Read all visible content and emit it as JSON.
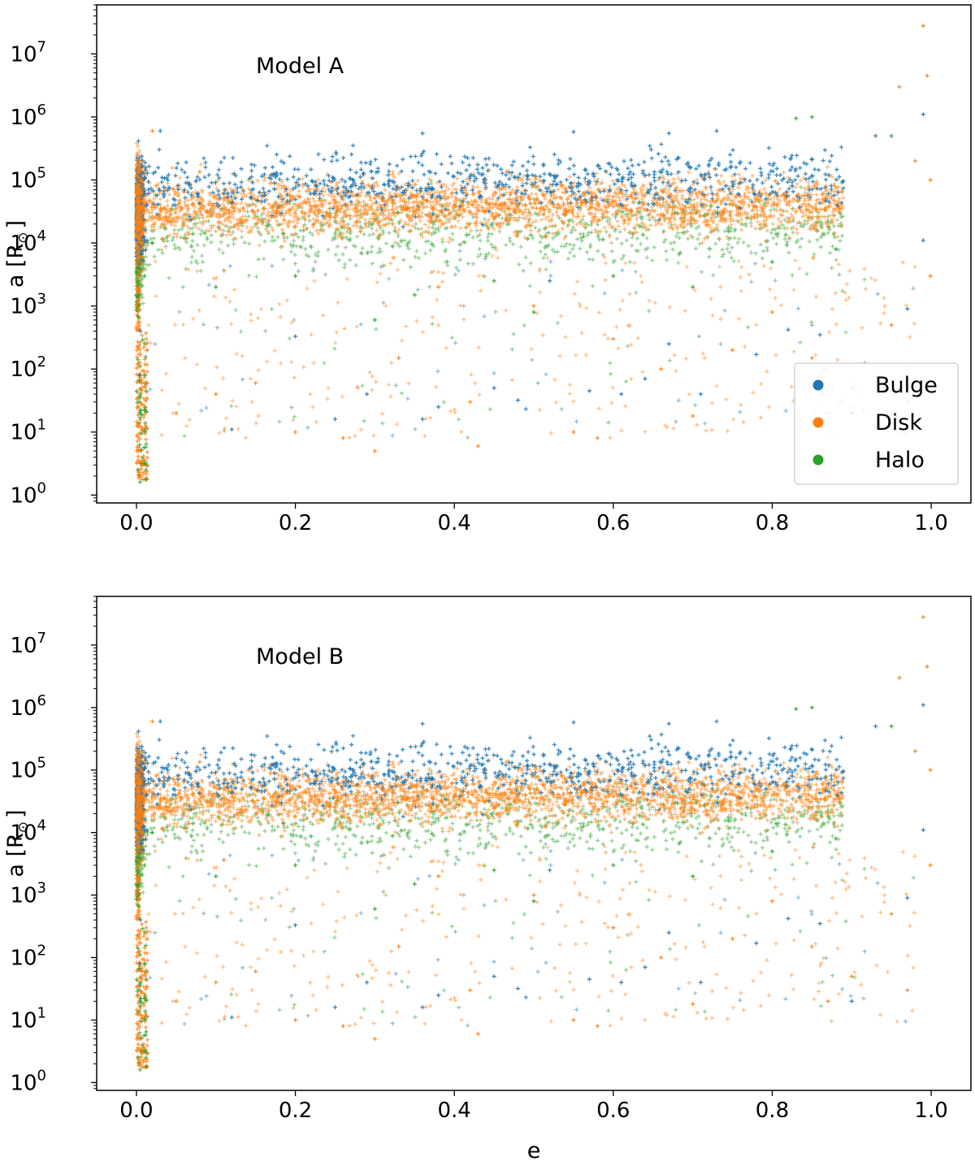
{
  "chart_data": [
    {
      "type": "scatter",
      "title": "",
      "annotation": "Model A",
      "xlabel": "",
      "ylabel": "a [R",
      "ylabel_symbol": "⊙",
      "ylabel_close": "]",
      "xscale": "linear",
      "yscale": "log",
      "xlim": [
        -0.05,
        1.05
      ],
      "ylim": [
        0.75,
        60000000
      ],
      "xticks": [
        0.0,
        0.2,
        0.4,
        0.6,
        0.8,
        1.0
      ],
      "xtick_labels": [
        "0.0",
        "0.2",
        "0.4",
        "0.6",
        "0.8",
        "1.0"
      ],
      "yticks": [
        1,
        10,
        100,
        1000,
        10000,
        100000,
        1000000,
        10000000
      ],
      "ytick_labels": [
        {
          "base": "10",
          "exp": "0"
        },
        {
          "base": "10",
          "exp": "1"
        },
        {
          "base": "10",
          "exp": "2"
        },
        {
          "base": "10",
          "exp": "3"
        },
        {
          "base": "10",
          "exp": "4"
        },
        {
          "base": "10",
          "exp": "5"
        },
        {
          "base": "10",
          "exp": "6"
        },
        {
          "base": "10",
          "exp": "7"
        }
      ],
      "grid": false,
      "legend": {
        "placement": "lower-right",
        "entries": [
          "Bulge",
          "Disk",
          "Halo"
        ]
      },
      "marker": "plus",
      "series": [
        {
          "name": "Bulge",
          "color": "#1f77b4",
          "points": [
            [
              0.03,
              600000
            ],
            [
              0.36,
              550000
            ],
            [
              0.55,
              580000
            ],
            [
              0.67,
              550000
            ],
            [
              0.73,
              600000
            ],
            [
              0.93,
              500000
            ],
            [
              0.99,
              1100000
            ],
            [
              0.12,
              11
            ],
            [
              0.25,
              16
            ],
            [
              0.29,
              40
            ],
            [
              0.36,
              16
            ],
            [
              0.38,
              25
            ],
            [
              0.45,
              50
            ],
            [
              0.48,
              32
            ],
            [
              0.57,
              45
            ],
            [
              0.61,
              40
            ],
            [
              0.64,
              70
            ],
            [
              0.67,
              250
            ],
            [
              0.71,
              40
            ],
            [
              0.78,
              170
            ],
            [
              0.82,
              420
            ],
            [
              0.86,
              350
            ],
            [
              0.97,
              900
            ],
            [
              0.99,
              11000
            ],
            [
              0.005,
              400
            ],
            [
              0.004,
              80
            ],
            [
              0.2,
              330
            ],
            [
              0.52,
              2500
            ],
            [
              0.9,
              20
            ]
          ]
        },
        {
          "name": "Disk",
          "color": "#ff7f0e",
          "points": [
            [
              0.99,
              28000000
            ],
            [
              0.96,
              3000000
            ],
            [
              0.995,
              4500000
            ],
            [
              0.98,
              200000
            ],
            [
              0.999,
              100000
            ],
            [
              0.02,
              600000
            ],
            [
              0.3,
              5
            ],
            [
              0.2,
              10
            ],
            [
              0.26,
              8
            ],
            [
              0.43,
              6
            ],
            [
              0.58,
              8
            ],
            [
              0.7,
              18
            ],
            [
              0.1,
              40
            ],
            [
              0.05,
              20
            ],
            [
              0.15,
              60
            ],
            [
              0.33,
              150
            ],
            [
              0.42,
              30
            ],
            [
              0.55,
              10
            ],
            [
              0.66,
              100
            ],
            [
              0.75,
              200
            ],
            [
              0.85,
              150
            ],
            [
              0.9,
              50
            ],
            [
              0.97,
              30
            ],
            [
              0.999,
              3000
            ],
            [
              0.6,
              300
            ],
            [
              0.5,
              1000
            ],
            [
              0.38,
              2000
            ],
            [
              0.8,
              800
            ],
            [
              0.87,
              20
            ],
            [
              0.95,
              500
            ],
            [
              0.004,
              2
            ],
            [
              0.003,
              5
            ],
            [
              0.006,
              12
            ]
          ]
        },
        {
          "name": "Halo",
          "color": "#2ca02c",
          "points": [
            [
              0.85,
              1000000
            ],
            [
              0.95,
              500000
            ],
            [
              0.83,
              950000
            ],
            [
              0.1,
              2000
            ],
            [
              0.2,
              3000
            ],
            [
              0.35,
              1500
            ],
            [
              0.45,
              2500
            ],
            [
              0.6,
              3000
            ],
            [
              0.7,
              2000
            ],
            [
              0.8,
              5000
            ],
            [
              0.88,
              8000
            ],
            [
              0.01,
              3000
            ],
            [
              0.005,
              20
            ],
            [
              0.02,
              10000
            ],
            [
              0.5,
              800
            ],
            [
              0.3,
              600
            ]
          ]
        }
      ]
    },
    {
      "type": "scatter",
      "title": "",
      "annotation": "Model B",
      "xlabel": "e",
      "ylabel": "a [R",
      "ylabel_symbol": "⊙",
      "ylabel_close": "]",
      "xscale": "linear",
      "yscale": "log",
      "xlim": [
        -0.05,
        1.05
      ],
      "ylim": [
        0.75,
        60000000
      ],
      "xticks": [
        0.0,
        0.2,
        0.4,
        0.6,
        0.8,
        1.0
      ],
      "xtick_labels": [
        "0.0",
        "0.2",
        "0.4",
        "0.6",
        "0.8",
        "1.0"
      ],
      "yticks": [
        1,
        10,
        100,
        1000,
        10000,
        100000,
        1000000,
        10000000
      ],
      "ytick_labels": [
        {
          "base": "10",
          "exp": "0"
        },
        {
          "base": "10",
          "exp": "1"
        },
        {
          "base": "10",
          "exp": "2"
        },
        {
          "base": "10",
          "exp": "3"
        },
        {
          "base": "10",
          "exp": "4"
        },
        {
          "base": "10",
          "exp": "5"
        },
        {
          "base": "10",
          "exp": "6"
        },
        {
          "base": "10",
          "exp": "7"
        }
      ],
      "grid": false,
      "legend": null,
      "marker": "plus",
      "series": [
        {
          "name": "Bulge",
          "color": "#1f77b4",
          "points": [
            [
              0.03,
              600000
            ],
            [
              0.36,
              550000
            ],
            [
              0.55,
              580000
            ],
            [
              0.67,
              550000
            ],
            [
              0.73,
              600000
            ],
            [
              0.93,
              500000
            ],
            [
              0.99,
              1100000
            ],
            [
              0.12,
              11
            ],
            [
              0.25,
              16
            ],
            [
              0.29,
              40
            ],
            [
              0.36,
              16
            ],
            [
              0.38,
              25
            ],
            [
              0.45,
              50
            ],
            [
              0.48,
              32
            ],
            [
              0.57,
              45
            ],
            [
              0.61,
              40
            ],
            [
              0.64,
              70
            ],
            [
              0.67,
              250
            ],
            [
              0.71,
              40
            ],
            [
              0.78,
              170
            ],
            [
              0.82,
              420
            ],
            [
              0.86,
              350
            ],
            [
              0.97,
              900
            ],
            [
              0.99,
              11000
            ],
            [
              0.005,
              400
            ],
            [
              0.004,
              80
            ],
            [
              0.2,
              330
            ],
            [
              0.52,
              2500
            ],
            [
              0.9,
              20
            ]
          ]
        },
        {
          "name": "Disk",
          "color": "#ff7f0e",
          "points": [
            [
              0.99,
              28000000
            ],
            [
              0.96,
              3000000
            ],
            [
              0.995,
              4500000
            ],
            [
              0.98,
              200000
            ],
            [
              0.999,
              100000
            ],
            [
              0.02,
              600000
            ],
            [
              0.3,
              5
            ],
            [
              0.2,
              10
            ],
            [
              0.26,
              8
            ],
            [
              0.43,
              6
            ],
            [
              0.58,
              8
            ],
            [
              0.7,
              18
            ],
            [
              0.1,
              40
            ],
            [
              0.05,
              20
            ],
            [
              0.15,
              60
            ],
            [
              0.33,
              150
            ],
            [
              0.42,
              30
            ],
            [
              0.55,
              10
            ],
            [
              0.66,
              100
            ],
            [
              0.75,
              200
            ],
            [
              0.85,
              150
            ],
            [
              0.9,
              50
            ],
            [
              0.97,
              30
            ],
            [
              0.999,
              3000
            ],
            [
              0.6,
              300
            ],
            [
              0.5,
              1000
            ],
            [
              0.38,
              2000
            ],
            [
              0.8,
              800
            ],
            [
              0.87,
              20
            ],
            [
              0.95,
              500
            ],
            [
              0.004,
              2
            ],
            [
              0.003,
              5
            ],
            [
              0.006,
              12
            ]
          ]
        },
        {
          "name": "Halo",
          "color": "#2ca02c",
          "points": [
            [
              0.85,
              1000000
            ],
            [
              0.95,
              500000
            ],
            [
              0.83,
              950000
            ],
            [
              0.1,
              2000
            ],
            [
              0.2,
              3000
            ],
            [
              0.35,
              1500
            ],
            [
              0.45,
              2500
            ],
            [
              0.6,
              3000
            ],
            [
              0.7,
              2000
            ],
            [
              0.8,
              5000
            ],
            [
              0.88,
              8000
            ],
            [
              0.01,
              3000
            ],
            [
              0.005,
              20
            ],
            [
              0.02,
              10000
            ],
            [
              0.5,
              800
            ],
            [
              0.3,
              600
            ]
          ]
        }
      ]
    }
  ]
}
